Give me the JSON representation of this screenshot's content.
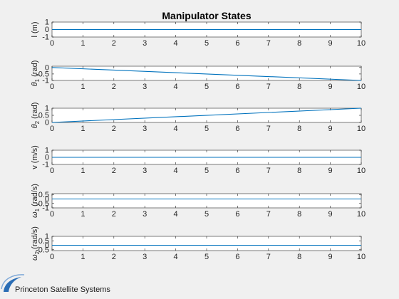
{
  "title": "Manipulator States",
  "logo": {
    "text": "Princeton Satellite Systems",
    "color": "#2a6db5"
  },
  "line_color": "#0072bd",
  "chart_data": [
    {
      "type": "line",
      "ylabel": {
        "main": "l (m)"
      },
      "x": [
        0,
        10
      ],
      "y": [
        0,
        0
      ],
      "xlim": [
        0,
        10
      ],
      "ylim": [
        -1,
        1
      ],
      "xticks": [
        "0",
        "1",
        "2",
        "3",
        "4",
        "5",
        "6",
        "7",
        "8",
        "9",
        "10"
      ],
      "yticks": [
        {
          "v": -1,
          "label": "-1"
        },
        {
          "v": 0,
          "label": "0"
        },
        {
          "v": 1,
          "label": "1"
        }
      ],
      "grid": false
    },
    {
      "type": "line",
      "ylabel": {
        "sym": "θ",
        "sub": "1",
        "unit": " (rad)"
      },
      "x": [
        0,
        10
      ],
      "y": [
        0,
        -1
      ],
      "xlim": [
        0,
        10
      ],
      "ylim": [
        -1,
        0.1
      ],
      "xticks": [
        "0",
        "1",
        "2",
        "3",
        "4",
        "5",
        "6",
        "7",
        "8",
        "9",
        "10"
      ],
      "yticks": [
        {
          "v": -1,
          "label": "-1"
        },
        {
          "v": -0.5,
          "label": "-0.5"
        },
        {
          "v": 0,
          "label": "0"
        }
      ],
      "grid": false
    },
    {
      "type": "line",
      "ylabel": {
        "sym": "θ",
        "sub": "2",
        "unit": " (rad)"
      },
      "x": [
        0,
        10
      ],
      "y": [
        0,
        1
      ],
      "xlim": [
        0,
        10
      ],
      "ylim": [
        0,
        1
      ],
      "xticks": [
        "0",
        "1",
        "2",
        "3",
        "4",
        "5",
        "6",
        "7",
        "8",
        "9",
        "10"
      ],
      "yticks": [
        {
          "v": 0,
          "label": "0"
        },
        {
          "v": 0.5,
          "label": "0.5"
        },
        {
          "v": 1,
          "label": "1"
        }
      ],
      "grid": false
    },
    {
      "type": "line",
      "ylabel": {
        "main": "v (m/s)"
      },
      "x": [
        0,
        10
      ],
      "y": [
        0,
        0
      ],
      "xlim": [
        0,
        10
      ],
      "ylim": [
        -1,
        1
      ],
      "xticks": [
        "0",
        "1",
        "2",
        "3",
        "4",
        "5",
        "6",
        "7",
        "8",
        "9",
        "10"
      ],
      "yticks": [
        {
          "v": -1,
          "label": "-1"
        },
        {
          "v": 0,
          "label": "0"
        },
        {
          "v": 1,
          "label": "1"
        }
      ],
      "grid": false
    },
    {
      "type": "line",
      "ylabel": {
        "sym": "ω",
        "sub": "1",
        "unit": " (rad/s)"
      },
      "x": [
        0,
        10
      ],
      "y": [
        0,
        0
      ],
      "xlim": [
        0,
        10
      ],
      "ylim": [
        -1,
        0.6
      ],
      "xticks": [
        "0",
        "1",
        "2",
        "3",
        "4",
        "5",
        "6",
        "7",
        "8",
        "9",
        "10"
      ],
      "yticks": [
        {
          "v": -1,
          "label": "-1"
        },
        {
          "v": -0.5,
          "label": "-0.5"
        },
        {
          "v": 0,
          "label": "0"
        },
        {
          "v": 0.5,
          "label": "0.5"
        }
      ],
      "grid": false
    },
    {
      "type": "line",
      "ylabel": {
        "sym": "ω",
        "sub": "2",
        "unit": " (rad/s)"
      },
      "x": [
        0,
        10
      ],
      "y": [
        0,
        0
      ],
      "xlim": [
        0,
        10
      ],
      "ylim": [
        -0.6,
        1
      ],
      "xticks": [
        "0",
        "1",
        "2",
        "3",
        "4",
        "5",
        "6",
        "7",
        "8",
        "9",
        "10"
      ],
      "yticks": [
        {
          "v": -0.5,
          "label": "-0.5"
        },
        {
          "v": 0,
          "label": "0"
        },
        {
          "v": 0.5,
          "label": "0.5"
        },
        {
          "v": 1,
          "label": "1"
        }
      ],
      "grid": false
    }
  ]
}
